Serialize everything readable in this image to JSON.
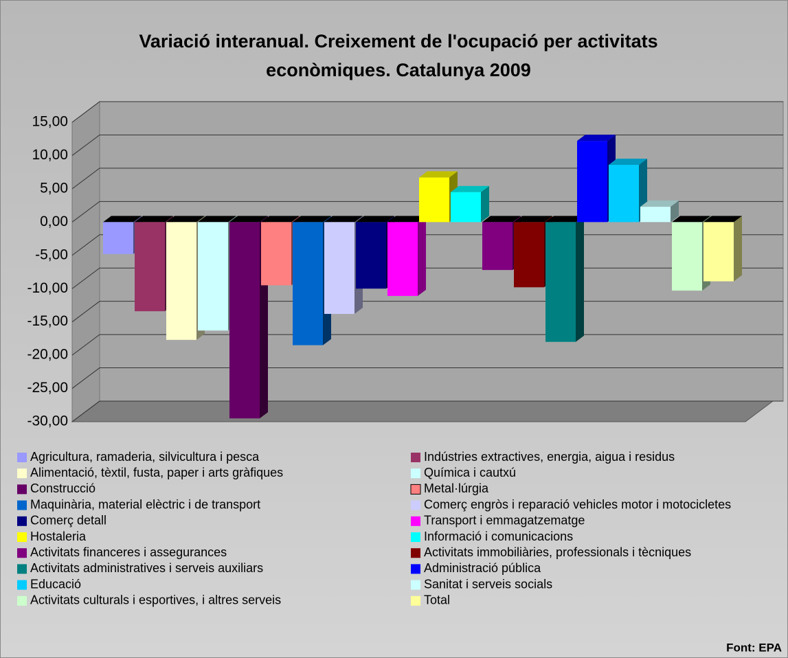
{
  "chart_data": {
    "type": "bar3d",
    "title": "Variació interanual. Creixement de l'ocupació per activitats econòmiques. Catalunya 2009",
    "source": "Font: EPA",
    "ylim": [
      -30,
      15
    ],
    "yticks": [
      {
        "value": -30,
        "label": "-30,00"
      },
      {
        "value": -25,
        "label": "-25,00"
      },
      {
        "value": -20,
        "label": "-20,00"
      },
      {
        "value": -15,
        "label": "-15,00"
      },
      {
        "value": -10,
        "label": "-10,00"
      },
      {
        "value": -5,
        "label": "-5,00"
      },
      {
        "value": 0,
        "label": "0,00"
      },
      {
        "value": 5,
        "label": "5,00"
      },
      {
        "value": 10,
        "label": "10,00"
      },
      {
        "value": 15,
        "label": "15,00"
      }
    ],
    "grid": true,
    "series": [
      {
        "name": "Agricultura, ramaderia, silvicultura i pesca",
        "color": "#9999ff",
        "values": [
          -4.8
        ]
      },
      {
        "name": "Indústries extractives, energia, aigua i residus",
        "color": "#993366",
        "values": [
          -13.4
        ]
      },
      {
        "name": "Alimentació, tèxtil, fusta, paper i arts gràfiques",
        "color": "#ffffcc",
        "values": [
          -17.7
        ]
      },
      {
        "name": "Química i cautxú",
        "color": "#ccffff",
        "values": [
          -16.3
        ]
      },
      {
        "name": "Construcció",
        "color": "#660066",
        "values": [
          -29.5
        ]
      },
      {
        "name": "Metal·lúrgia",
        "color": "#ff8080",
        "values": [
          -9.5
        ]
      },
      {
        "name": "Maquinària, material elèctric i de transport",
        "color": "#0066cc",
        "values": [
          -18.5
        ]
      },
      {
        "name": "Comerç engròs i reparació vehicles motor i motocicletes",
        "color": "#ccccff",
        "values": [
          -13.8
        ]
      },
      {
        "name": "Comerç detall",
        "color": "#000080",
        "values": [
          -10.0
        ]
      },
      {
        "name": "Transport i emmagatzematge",
        "color": "#ff00ff",
        "values": [
          -11.1
        ]
      },
      {
        "name": "Hostaleria",
        "color": "#ffff00",
        "values": [
          6.7
        ]
      },
      {
        "name": "Informació i comunicacions",
        "color": "#00ffff",
        "values": [
          4.5
        ]
      },
      {
        "name": "Activitats financeres i assegurances",
        "color": "#800080",
        "values": [
          -7.2
        ]
      },
      {
        "name": "Activitats immobiliàries, professionals i tècniques",
        "color": "#800000",
        "values": [
          -9.8
        ]
      },
      {
        "name": "Activitats administratives i serveis auxiliars",
        "color": "#008080",
        "values": [
          -18.0
        ]
      },
      {
        "name": "Administració pública",
        "color": "#0000ff",
        "values": [
          12.2
        ]
      },
      {
        "name": "Educació",
        "color": "#00ccff",
        "values": [
          8.6
        ]
      },
      {
        "name": "Sanitat i serveis socials",
        "color": "#ccffff",
        "values": [
          2.3
        ]
      },
      {
        "name": "Activitats culturals i esportives, i altres serveis",
        "color": "#ccffcc",
        "values": [
          -10.3
        ]
      },
      {
        "name": "Total",
        "color": "#ffff99",
        "values": [
          -8.9
        ]
      }
    ]
  }
}
